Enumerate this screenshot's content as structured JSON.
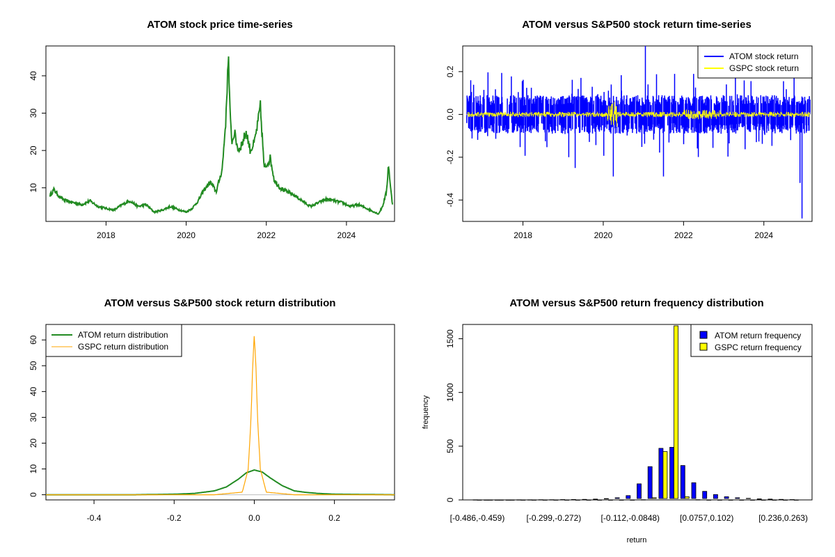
{
  "chart_data": [
    {
      "type": "line",
      "title": "ATOM stock price time-series",
      "xlabel": "",
      "ylabel": "",
      "x_ticks": [
        "2018",
        "2020",
        "2022",
        "2024"
      ],
      "y_ticks": [
        "10",
        "20",
        "30",
        "40"
      ],
      "xlim": [
        2016.5,
        2025.2
      ],
      "ylim": [
        1,
        48
      ],
      "series": [
        {
          "color": "#228B22",
          "x": [
            2016.6,
            2016.7,
            2016.85,
            2017.0,
            2017.2,
            2017.4,
            2017.6,
            2017.8,
            2018.0,
            2018.2,
            2018.4,
            2018.6,
            2018.8,
            2019.0,
            2019.2,
            2019.4,
            2019.6,
            2019.8,
            2020.0,
            2020.15,
            2020.3,
            2020.45,
            2020.6,
            2020.75,
            2020.9,
            2021.0,
            2021.05,
            2021.1,
            2021.15,
            2021.2,
            2021.3,
            2021.4,
            2021.5,
            2021.6,
            2021.7,
            2021.8,
            2021.85,
            2021.95,
            2022.1,
            2022.2,
            2022.35,
            2022.5,
            2022.7,
            2022.9,
            2023.1,
            2023.3,
            2023.5,
            2023.7,
            2023.9,
            2024.1,
            2024.3,
            2024.5,
            2024.7,
            2024.8,
            2024.9,
            2025.0,
            2025.05,
            2025.1,
            2025.15
          ],
          "values": [
            8.0,
            9.5,
            7.5,
            6.5,
            6.0,
            5.5,
            6.5,
            5.0,
            4.5,
            4.0,
            5.5,
            6.5,
            5.0,
            5.5,
            3.5,
            4.0,
            5.0,
            4.2,
            3.5,
            4.5,
            6.5,
            9.5,
            11.5,
            9.0,
            15.0,
            30.0,
            46.5,
            28.0,
            22.0,
            25.0,
            20.0,
            22.0,
            25.0,
            20.0,
            22.0,
            28.0,
            32.0,
            15.0,
            18.0,
            12.0,
            10.0,
            9.0,
            8.0,
            6.5,
            5.0,
            6.0,
            7.0,
            6.5,
            6.0,
            5.0,
            5.5,
            4.5,
            3.5,
            3.0,
            5.0,
            9.0,
            16.5,
            10.0,
            5.5
          ]
        }
      ]
    },
    {
      "type": "line",
      "title": "ATOM versus S&P500 stock return time-series",
      "xlabel": "",
      "ylabel": "",
      "x_ticks": [
        "2018",
        "2020",
        "2022",
        "2024"
      ],
      "y_ticks": [
        "-0.4",
        "-0.2",
        "0.0",
        "0.2"
      ],
      "xlim": [
        2016.5,
        2025.2
      ],
      "ylim": [
        -0.5,
        0.32
      ],
      "legend_position": "top-right",
      "series": [
        {
          "name": "ATOM stock return",
          "color": "#0000FF",
          "x_range": [
            2016.6,
            2025.15
          ],
          "y_range": [
            -0.486,
            0.32
          ]
        },
        {
          "name": "GSPC stock return",
          "color": "#FFFF00",
          "x_range": [
            2016.6,
            2025.15
          ],
          "y_range": [
            -0.12,
            0.09
          ]
        }
      ]
    },
    {
      "type": "area",
      "title": "ATOM versus S&P500 stock return distribution",
      "xlabel": "",
      "ylabel": "",
      "x_ticks": [
        "-0.4",
        "-0.2",
        "0.0",
        "0.2"
      ],
      "y_ticks": [
        "0",
        "10",
        "20",
        "30",
        "40",
        "50",
        "60"
      ],
      "xlim": [
        -0.52,
        0.35
      ],
      "ylim": [
        -2,
        66
      ],
      "legend_position": "top-left",
      "series": [
        {
          "name": "ATOM return distribution",
          "color": "#228B22",
          "x": [
            -0.52,
            -0.3,
            -0.2,
            -0.15,
            -0.1,
            -0.07,
            -0.04,
            -0.02,
            0.0,
            0.02,
            0.04,
            0.07,
            0.1,
            0.13,
            0.16,
            0.2,
            0.35
          ],
          "values": [
            0,
            0,
            0.2,
            0.5,
            1.5,
            3.0,
            6.0,
            8.5,
            9.6,
            8.8,
            6.5,
            3.5,
            1.5,
            0.9,
            0.5,
            0.2,
            0
          ]
        },
        {
          "name": "GSPC return distribution",
          "color": "#FFA500",
          "x": [
            -0.52,
            -0.1,
            -0.03,
            -0.015,
            -0.008,
            -0.004,
            0.0,
            0.004,
            0.008,
            0.015,
            0.03,
            0.1,
            0.35
          ],
          "values": [
            0,
            0,
            1.0,
            10.0,
            30.0,
            50.0,
            62.0,
            50.0,
            30.0,
            10.0,
            1.0,
            0,
            0
          ]
        }
      ]
    },
    {
      "type": "bar",
      "title": "ATOM versus S&P500 return frequency distribution",
      "xlabel": "return",
      "ylabel": "frequency",
      "x_ticks": [
        "[-0.486,-0.459)",
        "[-0.299,-0.272)",
        "[-0.112,-0.0848)",
        "[0.0757,0.102)",
        "[0.236,0.263)"
      ],
      "y_ticks": [
        "0",
        "500",
        "1000",
        "1500"
      ],
      "ylim": [
        0,
        1620
      ],
      "legend_position": "top-right",
      "series": [
        {
          "name": "ATOM return frequency",
          "color": "#0000FF",
          "values": [
            1,
            0,
            0,
            0,
            1,
            1,
            2,
            2,
            3,
            4,
            5,
            8,
            12,
            20,
            40,
            150,
            310,
            480,
            490,
            320,
            160,
            80,
            50,
            30,
            20,
            15,
            10,
            8,
            5,
            3
          ]
        },
        {
          "name": "GSPC return frequency",
          "color": "#FFFF00",
          "values": [
            0,
            0,
            0,
            0,
            0,
            0,
            0,
            0,
            0,
            0,
            0,
            0,
            0,
            0,
            0,
            2,
            20,
            450,
            1620,
            30,
            2,
            0,
            0,
            0,
            0,
            0,
            0,
            0,
            0,
            0
          ]
        }
      ]
    }
  ]
}
